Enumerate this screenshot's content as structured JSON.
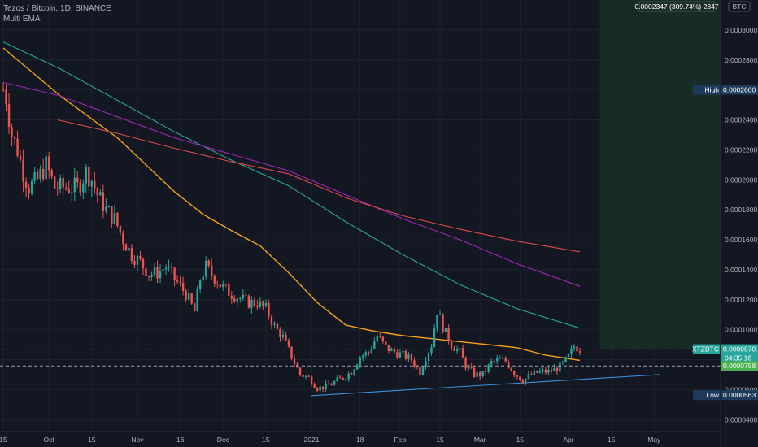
{
  "header": {
    "symbol_title": "Tezos / Bitcoin, 1D, BINANCE",
    "indicator": "Multi EMA",
    "currency_badge": "BTC",
    "measure_label": "0.0002347 (309.74%) 2347"
  },
  "chart_data": {
    "type": "candlestick",
    "title": "Tezos / Bitcoin, 1D, BINANCE",
    "ylim": [
      3.2e-05,
      0.00032
    ],
    "y_ticks": [
      "0.0003000",
      "0.0002800",
      "0.0002600",
      "0.0002400",
      "0.0002200",
      "0.0002000",
      "0.0001800",
      "0.0001600",
      "0.0001400",
      "0.0001200",
      "0.0001000",
      "0.0000800",
      "0.0000600",
      "0.0000400"
    ],
    "y_tick_values": [
      0.0003,
      0.00028,
      0.00026,
      0.00024,
      0.00022,
      0.0002,
      0.00018,
      0.00016,
      0.00014,
      0.00012,
      0.0001,
      8e-05,
      6e-05,
      4e-05
    ],
    "x_ticks": [
      "15",
      "Oct",
      "15",
      "Nov",
      "16",
      "Dec",
      "15",
      "2021",
      "18",
      "Feb",
      "15",
      "Mar",
      "15",
      "Apr",
      "15",
      "May"
    ],
    "x_tick_days": [
      0,
      16,
      31,
      47,
      62,
      77,
      92,
      108,
      125,
      139,
      153,
      167,
      181,
      198,
      213,
      228
    ],
    "last_price_day": 202,
    "future_end_day": 245,
    "price_path": [
      [
        0,
        0.00026
      ],
      [
        1,
        0.000255
      ],
      [
        3,
        0.00023
      ],
      [
        5,
        0.00022
      ],
      [
        7,
        0.000205
      ],
      [
        9,
        0.000195
      ],
      [
        12,
        0.0002
      ],
      [
        15,
        0.00021
      ],
      [
        18,
        0.000195
      ],
      [
        22,
        0.000195
      ],
      [
        26,
        0.000195
      ],
      [
        29,
        0.000205
      ],
      [
        31,
        0.0002
      ],
      [
        33,
        0.00019
      ],
      [
        36,
        0.00018
      ],
      [
        39,
        0.000174
      ],
      [
        42,
        0.00016
      ],
      [
        45,
        0.00015
      ],
      [
        48,
        0.000145
      ],
      [
        51,
        0.000137
      ],
      [
        54,
        0.000138
      ],
      [
        57,
        0.000142
      ],
      [
        60,
        0.000134
      ],
      [
        64,
        0.000124
      ],
      [
        67,
        0.000112
      ],
      [
        69,
        0.000134
      ],
      [
        71,
        0.000142
      ],
      [
        73,
        0.000137
      ],
      [
        76,
        0.00013
      ],
      [
        79,
        0.000125
      ],
      [
        82,
        0.000122
      ],
      [
        86,
        0.000118
      ],
      [
        89,
        0.000118
      ],
      [
        92,
        0.000114
      ],
      [
        95,
        0.000102
      ],
      [
        98,
        9.5e-05
      ],
      [
        101,
        8.2e-05
      ],
      [
        104,
        7e-05
      ],
      [
        107,
        6.8e-05
      ],
      [
        110,
        6.1e-05
      ],
      [
        113,
        6.2e-05
      ],
      [
        116,
        6.5e-05
      ],
      [
        119,
        6.8e-05
      ],
      [
        122,
        7.2e-05
      ],
      [
        125,
        8.2e-05
      ],
      [
        128,
        8.5e-05
      ],
      [
        131,
        9.6e-05
      ],
      [
        134,
        8.8e-05
      ],
      [
        137,
        8.5e-05
      ],
      [
        140,
        8.3e-05
      ],
      [
        143,
        8e-05
      ],
      [
        146,
        7.2e-05
      ],
      [
        148,
        8.2e-05
      ],
      [
        150,
        9e-05
      ],
      [
        152,
        0.000113
      ],
      [
        154,
        0.000102
      ],
      [
        157,
        9e-05
      ],
      [
        160,
        8.5e-05
      ],
      [
        162,
        7.6e-05
      ],
      [
        165,
        7e-05
      ],
      [
        168,
        7e-05
      ],
      [
        171,
        7.8e-05
      ],
      [
        174,
        8e-05
      ],
      [
        176,
        7.9e-05
      ],
      [
        179,
        7.1e-05
      ],
      [
        182,
        6.6e-05
      ],
      [
        185,
        7e-05
      ],
      [
        188,
        7.2e-05
      ],
      [
        191,
        7.2e-05
      ],
      [
        194,
        7.4e-05
      ],
      [
        196,
        7.7e-05
      ],
      [
        198,
        8.2e-05
      ],
      [
        200,
        8.9e-05
      ],
      [
        202,
        8.7e-05
      ]
    ],
    "series": [
      {
        "type": "line",
        "color": "#f7a21b",
        "points": [
          [
            0,
            0.000288
          ],
          [
            10,
            0.000272
          ],
          [
            20,
            0.000256
          ],
          [
            30,
            0.000242
          ],
          [
            40,
            0.000228
          ],
          [
            50,
            0.00021
          ],
          [
            60,
            0.000192
          ],
          [
            70,
            0.000177
          ],
          [
            80,
            0.000166
          ],
          [
            90,
            0.000156
          ],
          [
            100,
            0.000138
          ],
          [
            110,
            0.000118
          ],
          [
            120,
            0.000103
          ],
          [
            130,
            9.9e-05
          ],
          [
            140,
            9.6e-05
          ],
          [
            150,
            9.4e-05
          ],
          [
            160,
            9.2e-05
          ],
          [
            170,
            9e-05
          ],
          [
            180,
            8.8e-05
          ],
          [
            190,
            8.3e-05
          ],
          [
            202,
            7.95e-05
          ]
        ]
      },
      {
        "type": "line",
        "color": "#26a69a",
        "points": [
          [
            0,
            0.000292
          ],
          [
            20,
            0.000274
          ],
          [
            40,
            0.000253
          ],
          [
            60,
            0.000232
          ],
          [
            80,
            0.000213
          ],
          [
            100,
            0.000196
          ],
          [
            120,
            0.000172
          ],
          [
            140,
            0.00015
          ],
          [
            160,
            0.00013
          ],
          [
            180,
            0.000114
          ],
          [
            202,
            0.000101
          ]
        ]
      },
      {
        "type": "line",
        "color": "#9c27b0",
        "points": [
          [
            0,
            0.000265
          ],
          [
            20,
            0.000256
          ],
          [
            40,
            0.000242
          ],
          [
            60,
            0.000228
          ],
          [
            80,
            0.000217
          ],
          [
            100,
            0.000206
          ],
          [
            120,
            0.00019
          ],
          [
            140,
            0.000174
          ],
          [
            160,
            0.00016
          ],
          [
            180,
            0.000144
          ],
          [
            202,
            0.000129
          ]
        ]
      },
      {
        "type": "line",
        "color": "#d84a4a",
        "points": [
          [
            19,
            0.00024
          ],
          [
            40,
            0.000231
          ],
          [
            60,
            0.000221
          ],
          [
            80,
            0.000212
          ],
          [
            100,
            0.000204
          ],
          [
            120,
            0.000188
          ],
          [
            140,
            0.000176
          ],
          [
            160,
            0.000167
          ],
          [
            180,
            0.000159
          ],
          [
            202,
            0.000152
          ]
        ]
      },
      {
        "type": "line",
        "color": "#3f8fd6",
        "points": [
          [
            108,
            5.6e-05
          ],
          [
            230,
            7e-05
          ]
        ]
      }
    ],
    "high_label": "High",
    "high_value": "0.0002600",
    "high_level": 0.00026,
    "low_label": "Low",
    "low_value": "0.0000563",
    "low_level": 5.63e-05,
    "last_label": "XTZBTC",
    "last_value": "0.0000870",
    "countdown": "04:35:16",
    "last_level": 8.7e-05,
    "target_value": "0.0000758",
    "target_level": 7.58e-05
  },
  "colors": {
    "up": "#26a69a",
    "down": "#ef5350",
    "background": "#131722",
    "grid": "#1e222d",
    "axis_text": "#b2b5be",
    "projection_fill": "#1b2e27"
  }
}
